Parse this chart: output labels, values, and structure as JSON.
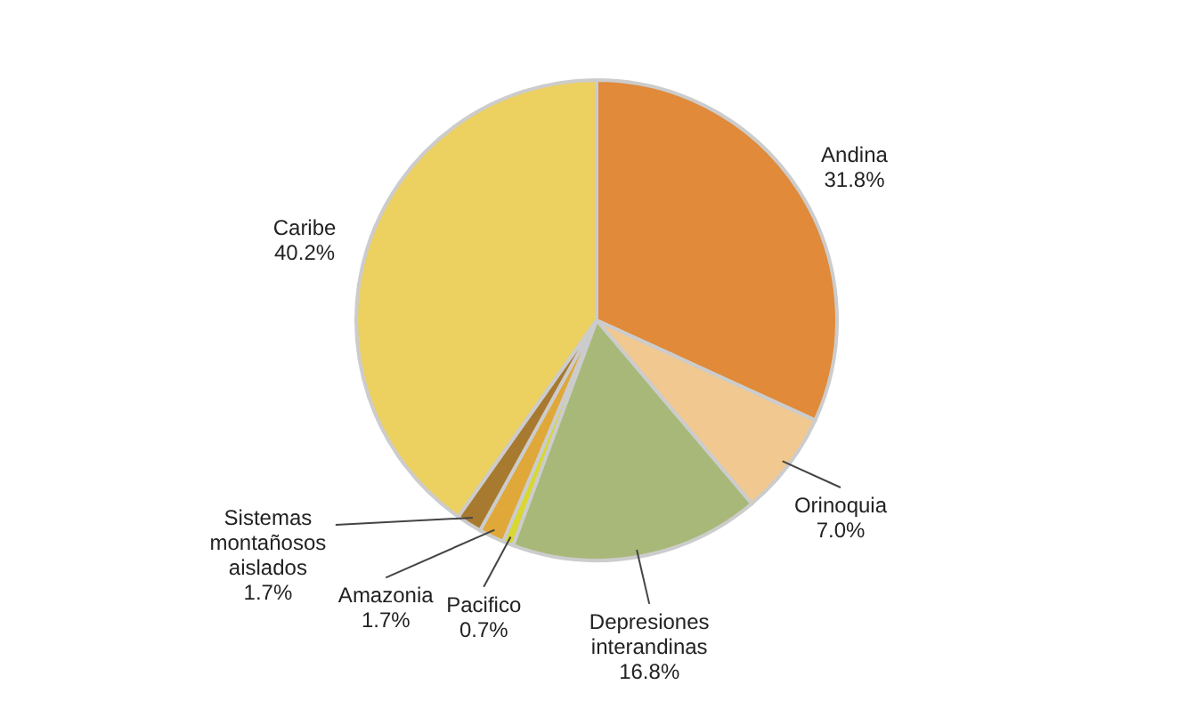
{
  "chart_data": {
    "type": "pie",
    "categories": [
      "Andina",
      "Orinoquia",
      "Depresiones interandinas",
      "Pacifico",
      "Amazonia",
      "Sistemas montañosos aislados",
      "Caribe"
    ],
    "values": [
      31.8,
      7.0,
      16.8,
      0.7,
      1.7,
      1.7,
      40.2
    ],
    "value_labels": [
      "31.8%",
      "7.0%",
      "16.8%",
      "0.7%",
      "1.7%",
      "1.7%",
      "40.2%"
    ],
    "colors": [
      "#e08a3a",
      "#f0c890",
      "#a8b878",
      "#d8d830",
      "#e0a838",
      "#a87a30",
      "#ecd060"
    ]
  }
}
